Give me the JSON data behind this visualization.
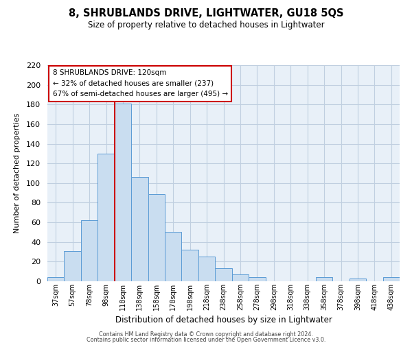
{
  "title": "8, SHRUBLANDS DRIVE, LIGHTWATER, GU18 5QS",
  "subtitle": "Size of property relative to detached houses in Lightwater",
  "xlabel": "Distribution of detached houses by size in Lightwater",
  "ylabel": "Number of detached properties",
  "bin_labels": [
    "37sqm",
    "57sqm",
    "78sqm",
    "98sqm",
    "118sqm",
    "138sqm",
    "158sqm",
    "178sqm",
    "198sqm",
    "218sqm",
    "238sqm",
    "258sqm",
    "278sqm",
    "298sqm",
    "318sqm",
    "338sqm",
    "358sqm",
    "378sqm",
    "398sqm",
    "418sqm",
    "438sqm"
  ],
  "bar_values": [
    4,
    31,
    62,
    130,
    181,
    106,
    89,
    50,
    32,
    25,
    13,
    7,
    4,
    0,
    0,
    0,
    4,
    0,
    3,
    0,
    4
  ],
  "bar_color": "#c9ddf0",
  "bar_edge_color": "#5b9bd5",
  "grid_color": "#c0cfe0",
  "background_color": "#e8f0f8",
  "vline_x": 4,
  "vline_color": "#cc0000",
  "ylim": [
    0,
    220
  ],
  "yticks": [
    0,
    20,
    40,
    60,
    80,
    100,
    120,
    140,
    160,
    180,
    200,
    220
  ],
  "annotation_title": "8 SHRUBLANDS DRIVE: 120sqm",
  "annotation_line1": "← 32% of detached houses are smaller (237)",
  "annotation_line2": "67% of semi-detached houses are larger (495) →",
  "annotation_box_color": "#ffffff",
  "annotation_border_color": "#cc0000",
  "footer1": "Contains HM Land Registry data © Crown copyright and database right 2024.",
  "footer2": "Contains public sector information licensed under the Open Government Licence v3.0."
}
